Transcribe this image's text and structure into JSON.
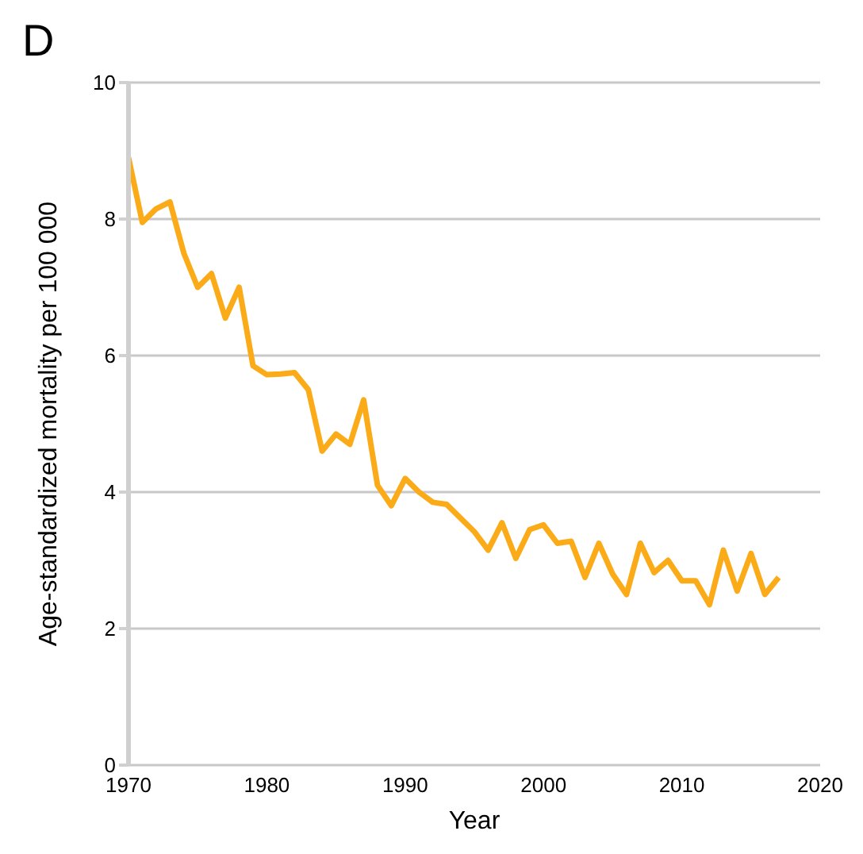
{
  "chart_data": {
    "type": "line",
    "title": "D",
    "xlabel": "Year",
    "ylabel": "Age-standardized mortality per 100 000",
    "x": [
      1970,
      1971,
      1972,
      1973,
      1974,
      1975,
      1976,
      1977,
      1978,
      1979,
      1980,
      1981,
      1982,
      1983,
      1984,
      1985,
      1986,
      1987,
      1988,
      1989,
      1990,
      1991,
      1992,
      1993,
      1994,
      1995,
      1996,
      1997,
      1998,
      1999,
      2000,
      2001,
      2002,
      2003,
      2004,
      2005,
      2006,
      2007,
      2008,
      2009,
      2010,
      2011,
      2012,
      2013,
      2014,
      2015,
      2016,
      2017
    ],
    "series": [
      {
        "color": "#fbab18",
        "values": [
          8.9,
          7.95,
          8.15,
          8.25,
          7.5,
          7.0,
          7.2,
          6.55,
          7.0,
          5.85,
          5.72,
          5.73,
          5.75,
          5.5,
          4.6,
          4.85,
          4.7,
          5.35,
          4.1,
          3.8,
          4.2,
          4.0,
          3.85,
          3.82,
          3.62,
          3.42,
          3.15,
          3.55,
          3.03,
          3.45,
          3.52,
          3.25,
          3.28,
          2.75,
          3.25,
          2.8,
          2.5,
          3.25,
          2.82,
          3.0,
          2.7,
          2.7,
          2.35,
          3.15,
          2.55,
          3.1,
          2.5,
          2.75
        ]
      }
    ],
    "xlim": [
      1970,
      2020
    ],
    "xticks": [
      1970,
      1980,
      1990,
      2000,
      2010,
      2020
    ],
    "ylim": [
      0,
      10
    ],
    "yticks": [
      0,
      2,
      4,
      6,
      8,
      10
    ],
    "grid": "y",
    "marker": "none",
    "line_style": "solid"
  }
}
